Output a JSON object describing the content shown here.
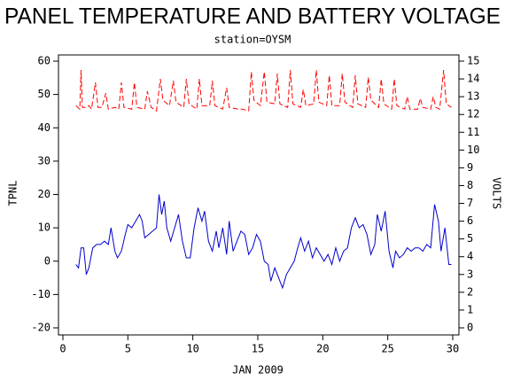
{
  "chart_data": {
    "type": "line",
    "title": "PANEL TEMPERATURE AND BATTERY VOLTAGE",
    "subtitle": "station=OYSM",
    "x_label": "JAN 2009",
    "y_label": "TPNL",
    "y2_label": "VOLTS",
    "xlim": [
      0,
      30
    ],
    "xticks": [
      0,
      5,
      10,
      15,
      20,
      25,
      30
    ],
    "ylim": [
      -20,
      60
    ],
    "yticks": [
      -20,
      -10,
      0,
      10,
      20,
      30,
      40,
      50,
      60
    ],
    "y2lim": [
      0,
      15
    ],
    "y2ticks": [
      0,
      1,
      2,
      3,
      4,
      5,
      6,
      7,
      8,
      9,
      10,
      11,
      12,
      13,
      14,
      15
    ],
    "series": [
      {
        "color": "#0000cc",
        "dashed": false,
        "x": [
          1.0,
          1.2,
          1.4,
          1.6,
          1.8,
          2.0,
          2.3,
          2.6,
          2.9,
          3.2,
          3.5,
          3.7,
          4.0,
          4.2,
          4.5,
          4.8,
          5.0,
          5.3,
          5.6,
          5.9,
          6.1,
          6.3,
          6.6,
          6.9,
          7.2,
          7.4,
          7.6,
          7.8,
          8.0,
          8.3,
          8.6,
          8.9,
          9.2,
          9.5,
          9.8,
          10.1,
          10.4,
          10.7,
          10.9,
          11.2,
          11.5,
          11.8,
          12.0,
          12.3,
          12.6,
          12.8,
          13.1,
          13.4,
          13.7,
          14.0,
          14.3,
          14.6,
          14.9,
          15.2,
          15.5,
          15.8,
          16.0,
          16.3,
          16.6,
          16.9,
          17.2,
          17.5,
          17.8,
          18.0,
          18.3,
          18.6,
          18.9,
          19.2,
          19.5,
          19.8,
          20.1,
          20.4,
          20.7,
          21.0,
          21.3,
          21.6,
          21.9,
          22.2,
          22.5,
          22.8,
          23.1,
          23.4,
          23.7,
          24.0,
          24.2,
          24.5,
          24.8,
          25.1,
          25.4,
          25.6,
          25.9,
          26.2,
          26.5,
          26.8,
          27.1,
          27.4,
          27.7,
          28.0,
          28.3,
          28.6,
          28.9,
          29.1,
          29.4,
          29.7,
          29.9
        ],
        "values": [
          -1,
          -2,
          4,
          4,
          -4,
          -2,
          4,
          5,
          5,
          6,
          5,
          10,
          3,
          1,
          3,
          8,
          11,
          10,
          12,
          14,
          12,
          7,
          8,
          9,
          10,
          20,
          14,
          18,
          10,
          6,
          10,
          14,
          6,
          1,
          1,
          10,
          16,
          12,
          15,
          6,
          3,
          9,
          4,
          10,
          2,
          12,
          3,
          6,
          9,
          8,
          2,
          4,
          8,
          6,
          0,
          -1,
          -6,
          -2,
          -5,
          -8,
          -4,
          -2,
          0,
          3,
          7,
          3,
          6,
          1,
          4,
          2,
          0,
          2,
          -1,
          4,
          0,
          3,
          4,
          10,
          13,
          10,
          11,
          8,
          2,
          5,
          14,
          9,
          15,
          3,
          -2,
          3,
          1,
          2,
          4,
          3,
          4,
          4,
          3,
          5,
          4,
          17,
          12,
          3,
          10,
          -1,
          -1
        ]
      },
      {
        "color": "#ff0000",
        "dashed": true,
        "axis": "y2",
        "x": [
          1.0,
          1.3,
          1.4,
          1.5,
          1.8,
          2.0,
          2.2,
          2.5,
          2.7,
          3.0,
          3.3,
          3.5,
          4.0,
          4.3,
          4.5,
          4.7,
          5.3,
          5.5,
          5.7,
          6.3,
          6.5,
          6.8,
          7.2,
          7.5,
          7.7,
          8.2,
          8.5,
          8.7,
          9.3,
          9.5,
          9.7,
          10.3,
          10.5,
          10.7,
          11.3,
          11.5,
          11.7,
          12.3,
          12.6,
          12.8,
          13.5,
          13.8,
          14.3,
          14.5,
          14.7,
          15.2,
          15.5,
          15.7,
          16.3,
          16.5,
          16.7,
          17.3,
          17.5,
          17.7,
          18.3,
          18.5,
          18.7,
          19.3,
          19.5,
          19.7,
          20.3,
          20.5,
          20.7,
          21.3,
          21.5,
          21.7,
          22.3,
          22.5,
          22.7,
          23.3,
          23.5,
          23.7,
          24.3,
          24.5,
          24.7,
          25.3,
          25.5,
          25.7,
          26.3,
          26.5,
          26.7,
          27.3,
          27.5,
          27.7,
          28.3,
          28.5,
          28.7,
          29.0,
          29.3,
          29.5,
          29.9
        ],
        "values": [
          12.5,
          12.3,
          14.5,
          12.4,
          12.4,
          12.5,
          12.3,
          13.8,
          12.4,
          12.4,
          13.2,
          12.3,
          12.4,
          12.3,
          13.8,
          12.4,
          12.3,
          13.8,
          12.4,
          12.3,
          13.3,
          12.4,
          12.2,
          14.0,
          12.8,
          12.5,
          13.9,
          12.7,
          12.4,
          14.0,
          12.6,
          12.3,
          14.0,
          12.5,
          12.5,
          13.9,
          12.5,
          12.3,
          13.5,
          12.4,
          12.3,
          12.3,
          12.2,
          14.4,
          12.8,
          12.5,
          14.4,
          12.7,
          12.6,
          14.3,
          12.6,
          12.4,
          14.5,
          12.6,
          12.4,
          13.4,
          12.5,
          12.6,
          14.5,
          12.7,
          12.5,
          14.2,
          12.5,
          12.5,
          14.3,
          12.7,
          12.4,
          14.2,
          12.6,
          12.4,
          14.1,
          12.8,
          12.4,
          14.0,
          12.6,
          12.3,
          14.0,
          12.5,
          12.3,
          13.0,
          12.3,
          12.3,
          12.9,
          12.4,
          12.3,
          13.0,
          12.4,
          12.3,
          14.5,
          12.6,
          12.4
        ]
      }
    ]
  }
}
